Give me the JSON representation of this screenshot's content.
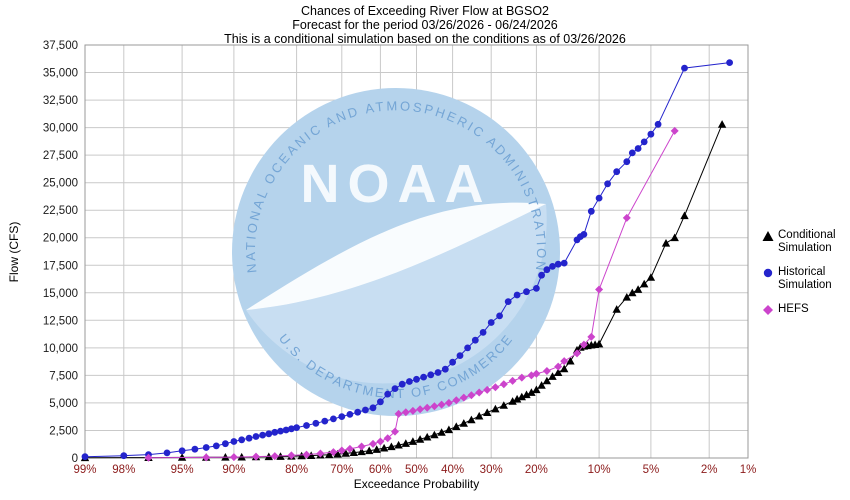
{
  "chart_data": {
    "type": "scatter",
    "title_lines": [
      "Chances of Exceeding River Flow at BGSO2",
      "Forecast for the period 03/26/2026 - 06/24/2026",
      "This is a conditional simulation based on the conditions as of 03/26/2026"
    ],
    "xlabel": "Exceedance Probability",
    "ylabel": "Flow (CFS)",
    "x_scale": "normal-probability",
    "x_ticks_percent": [
      99,
      98,
      95,
      90,
      80,
      70,
      60,
      50,
      40,
      30,
      20,
      10,
      5,
      2,
      1
    ],
    "x_tick_suffix": "%",
    "y_ticks": [
      0,
      2500,
      5000,
      7500,
      10000,
      12500,
      15000,
      17500,
      20000,
      22500,
      25000,
      27500,
      30000,
      32500,
      35000,
      37500
    ],
    "ylim": [
      0,
      37500
    ],
    "grid": true,
    "legend_position": "right",
    "colors": {
      "grid": "#c9c9c9",
      "border": "#999999",
      "x_tick_label": "#8b1a1a",
      "y_tick_label": "#1a1a1a"
    },
    "series": [
      {
        "name": "Conditional Simulation",
        "marker": "triangle",
        "color": "#000000",
        "points": [
          [
            99,
            30
          ],
          [
            97,
            40
          ],
          [
            95,
            50
          ],
          [
            93,
            60
          ],
          [
            91,
            70
          ],
          [
            89,
            85
          ],
          [
            87,
            100
          ],
          [
            85,
            115
          ],
          [
            83,
            135
          ],
          [
            81,
            160
          ],
          [
            79,
            190
          ],
          [
            77,
            220
          ],
          [
            75,
            260
          ],
          [
            73,
            300
          ],
          [
            71,
            350
          ],
          [
            69,
            420
          ],
          [
            67,
            490
          ],
          [
            65,
            570
          ],
          [
            63,
            660
          ],
          [
            61,
            770
          ],
          [
            59,
            900
          ],
          [
            57,
            1030
          ],
          [
            55,
            1170
          ],
          [
            53,
            1320
          ],
          [
            51,
            1500
          ],
          [
            49,
            1700
          ],
          [
            47,
            1900
          ],
          [
            45,
            2100
          ],
          [
            43,
            2320
          ],
          [
            41,
            2570
          ],
          [
            39,
            2850
          ],
          [
            37,
            3150
          ],
          [
            35,
            3470
          ],
          [
            33,
            3800
          ],
          [
            31,
            4120
          ],
          [
            29,
            4450
          ],
          [
            27,
            4780
          ],
          [
            25,
            5150
          ],
          [
            24,
            5350
          ],
          [
            23,
            5550
          ],
          [
            22,
            5750
          ],
          [
            21,
            5950
          ],
          [
            20,
            6200
          ],
          [
            19,
            6600
          ],
          [
            18,
            7000
          ],
          [
            17,
            7400
          ],
          [
            16,
            7750
          ],
          [
            15,
            8100
          ],
          [
            14,
            8800
          ],
          [
            13,
            9800
          ],
          [
            12.5,
            10050
          ],
          [
            12,
            10150
          ],
          [
            11.5,
            10200
          ],
          [
            11,
            10250
          ],
          [
            10.5,
            10300
          ],
          [
            10,
            10350
          ],
          [
            8,
            13500
          ],
          [
            7,
            14600
          ],
          [
            6.5,
            15000
          ],
          [
            6,
            15300
          ],
          [
            5.5,
            15800
          ],
          [
            5,
            16400
          ],
          [
            4,
            19500
          ],
          [
            3.5,
            20000
          ],
          [
            3,
            22000
          ],
          [
            1.6,
            30300
          ]
        ]
      },
      {
        "name": "Historical Simulation",
        "marker": "circle",
        "color": "#2424cc",
        "points": [
          [
            99,
            120
          ],
          [
            98,
            210
          ],
          [
            97,
            310
          ],
          [
            96,
            460
          ],
          [
            95,
            650
          ],
          [
            94,
            800
          ],
          [
            93,
            950
          ],
          [
            92,
            1100
          ],
          [
            91,
            1300
          ],
          [
            90,
            1500
          ],
          [
            89,
            1650
          ],
          [
            88,
            1800
          ],
          [
            87,
            1950
          ],
          [
            86,
            2080
          ],
          [
            85,
            2200
          ],
          [
            84,
            2330
          ],
          [
            83,
            2440
          ],
          [
            82,
            2540
          ],
          [
            81,
            2650
          ],
          [
            80,
            2760
          ],
          [
            78,
            2950
          ],
          [
            76,
            3150
          ],
          [
            74,
            3350
          ],
          [
            72,
            3550
          ],
          [
            70,
            3760
          ],
          [
            68,
            3960
          ],
          [
            66,
            4160
          ],
          [
            64,
            4360
          ],
          [
            62,
            4560
          ],
          [
            60,
            5100
          ],
          [
            58,
            5800
          ],
          [
            56,
            6300
          ],
          [
            54,
            6700
          ],
          [
            52,
            6950
          ],
          [
            50,
            7150
          ],
          [
            48,
            7350
          ],
          [
            46,
            7550
          ],
          [
            44,
            7760
          ],
          [
            42,
            8060
          ],
          [
            40,
            8700
          ],
          [
            38,
            9300
          ],
          [
            36,
            10000
          ],
          [
            34,
            10700
          ],
          [
            32,
            11400
          ],
          [
            30,
            12300
          ],
          [
            28,
            12900
          ],
          [
            26,
            14200
          ],
          [
            24,
            14800
          ],
          [
            22,
            15100
          ],
          [
            20,
            15400
          ],
          [
            19,
            16600
          ],
          [
            18,
            17100
          ],
          [
            17,
            17400
          ],
          [
            16,
            17600
          ],
          [
            15,
            17700
          ],
          [
            13,
            19800
          ],
          [
            12.5,
            20100
          ],
          [
            12,
            20300
          ],
          [
            11,
            22400
          ],
          [
            10,
            23600
          ],
          [
            9,
            24900
          ],
          [
            8,
            26000
          ],
          [
            7,
            26900
          ],
          [
            6.5,
            27700
          ],
          [
            6,
            28100
          ],
          [
            5.5,
            28700
          ],
          [
            5,
            29400
          ],
          [
            4.5,
            30300
          ],
          [
            3,
            35400
          ],
          [
            1.4,
            35900
          ]
        ]
      },
      {
        "name": "HEFS",
        "marker": "diamond",
        "color": "#cc44cc",
        "points": [
          [
            97,
            25
          ],
          [
            93,
            55
          ],
          [
            90,
            85
          ],
          [
            87,
            125
          ],
          [
            84,
            175
          ],
          [
            81,
            235
          ],
          [
            78,
            310
          ],
          [
            75,
            410
          ],
          [
            72,
            540
          ],
          [
            70,
            680
          ],
          [
            68,
            830
          ],
          [
            65,
            1040
          ],
          [
            62,
            1280
          ],
          [
            60,
            1500
          ],
          [
            58,
            1800
          ],
          [
            56,
            2400
          ],
          [
            55,
            4000
          ],
          [
            53,
            4150
          ],
          [
            51,
            4280
          ],
          [
            49,
            4420
          ],
          [
            47,
            4560
          ],
          [
            45,
            4700
          ],
          [
            43,
            4850
          ],
          [
            41,
            5000
          ],
          [
            39,
            5250
          ],
          [
            37,
            5480
          ],
          [
            35,
            5700
          ],
          [
            33,
            5950
          ],
          [
            31,
            6180
          ],
          [
            29,
            6420
          ],
          [
            27,
            6700
          ],
          [
            25,
            7000
          ],
          [
            23,
            7300
          ],
          [
            21,
            7500
          ],
          [
            20,
            7650
          ],
          [
            18,
            7900
          ],
          [
            16,
            8300
          ],
          [
            15,
            8800
          ],
          [
            13,
            9500
          ],
          [
            12,
            10300
          ],
          [
            11,
            11000
          ],
          [
            10,
            15300
          ],
          [
            7,
            21800
          ],
          [
            3.5,
            29700
          ]
        ]
      }
    ]
  },
  "watermark": {
    "ring_text_top": "NATIONAL OCEANIC AND ATMOSPHERIC ADMINISTRATION",
    "ring_text_bottom": "U.S. DEPARTMENT OF COMMERCE",
    "center_text": "NOAA",
    "disc_color": "#b5d3ec",
    "disc_lower_color": "#c8def2",
    "gull_color": "#ffffff",
    "ring_text_color": "#74a5d5",
    "center_text_color": "#f4f9fd"
  }
}
